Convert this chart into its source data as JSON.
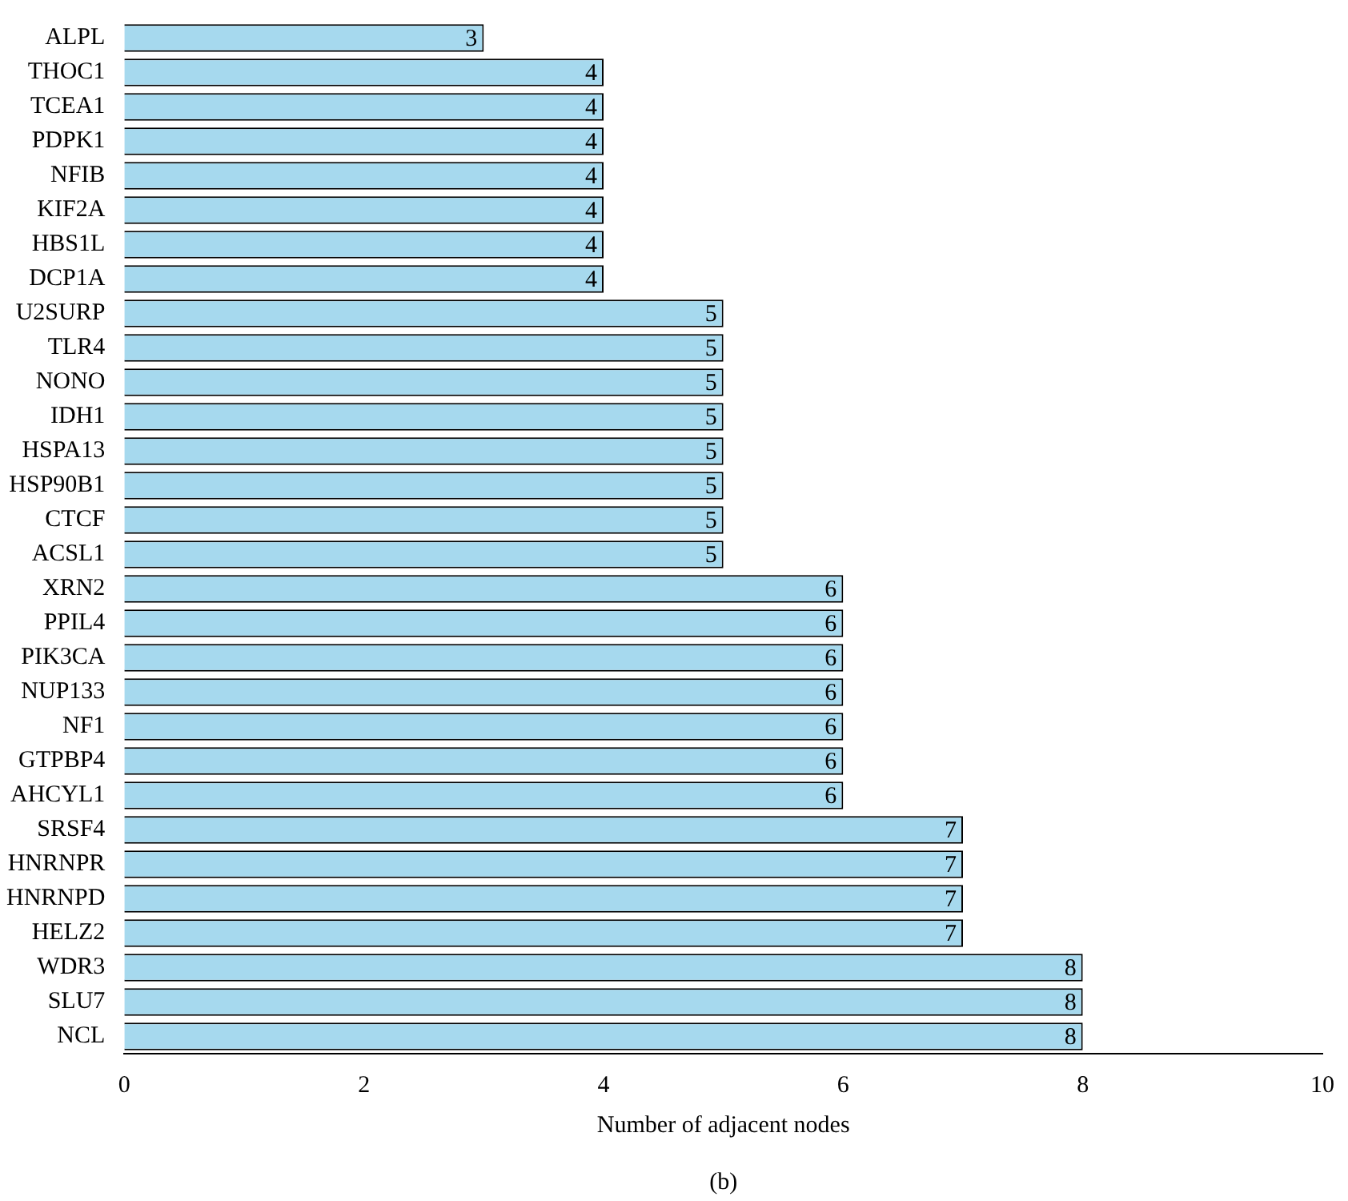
{
  "chart_data": {
    "type": "bar",
    "orientation": "horizontal",
    "xlabel": "Number of adjacent nodes",
    "categories": [
      "ALPL",
      "THOC1",
      "TCEA1",
      "PDPK1",
      "NFIB",
      "KIF2A",
      "HBS1L",
      "DCP1A",
      "U2SURP",
      "TLR4",
      "NONO",
      "IDH1",
      "HSPA13",
      "HSP90B1",
      "CTCF",
      "ACSL1",
      "XRN2",
      "PPIL4",
      "PIK3CA",
      "NUP133",
      "NF1",
      "GTPBP4",
      "AHCYL1",
      "SRSF4",
      "HNRNPR",
      "HNRNPD",
      "HELZ2",
      "WDR3",
      "SLU7",
      "NCL"
    ],
    "values": [
      3,
      4,
      4,
      4,
      4,
      4,
      4,
      4,
      5,
      5,
      5,
      5,
      5,
      5,
      5,
      5,
      6,
      6,
      6,
      6,
      6,
      6,
      6,
      7,
      7,
      7,
      7,
      8,
      8,
      8
    ],
    "color": "#a6d9ee",
    "xlim": [
      0,
      10
    ],
    "xticks": [
      0,
      2,
      4,
      6,
      8,
      10
    ],
    "grid": false,
    "legend": false,
    "data_labels": true,
    "annotations": [
      "(b)"
    ]
  }
}
